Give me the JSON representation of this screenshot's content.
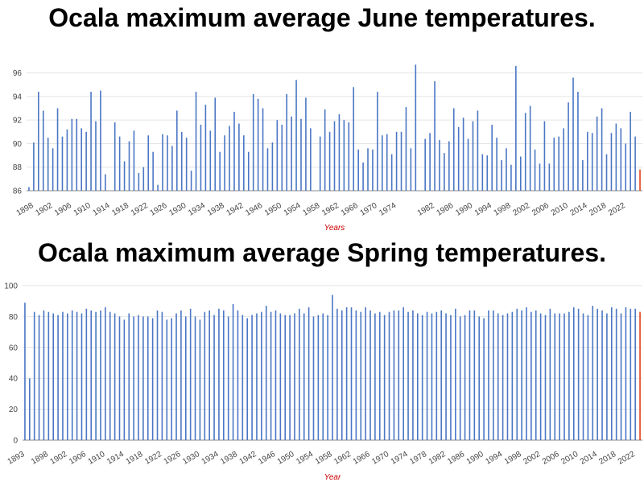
{
  "charts": [
    {
      "title": "Ocala maximum average June temperatures.",
      "chart_data": {
        "type": "bar",
        "xlabel": "Years",
        "ylabel": "",
        "ylim": [
          86,
          97
        ],
        "yticks": [
          86,
          88,
          90,
          92,
          94,
          96
        ],
        "grid": true,
        "start_year": 1897,
        "x_tick_labels": [
          "1898",
          "1902",
          "1906",
          "1910",
          "1914",
          "1918",
          "1922",
          "1926",
          "1930",
          "1934",
          "1938",
          "1942",
          "1946",
          "1950",
          "1954",
          "1958",
          "1962",
          "1966",
          "1970",
          "1974",
          "1982",
          "1986",
          "1990",
          "1994",
          "1998",
          "2002",
          "2006",
          "2010",
          "2014",
          "2018",
          "2022"
        ],
        "bar_color": "#4a76c4",
        "highlight_color": "#e0401a",
        "values": [
          86.3,
          90.1,
          94.4,
          92.8,
          90.5,
          89.6,
          93.0,
          90.6,
          91.2,
          92.1,
          92.1,
          91.3,
          91.0,
          94.4,
          91.9,
          94.5,
          87.4,
          null,
          91.8,
          90.6,
          88.5,
          90.2,
          91.1,
          87.5,
          88.0,
          90.7,
          89.3,
          86.5,
          90.8,
          90.7,
          89.8,
          92.8,
          91.0,
          90.5,
          87.7,
          94.4,
          91.6,
          93.3,
          91.1,
          93.9,
          89.3,
          90.7,
          91.5,
          92.7,
          91.7,
          90.7,
          89.3,
          94.2,
          93.8,
          93.0,
          89.6,
          90.1,
          92.0,
          91.6,
          94.2,
          92.3,
          95.4,
          92.1,
          93.9,
          91.3,
          null,
          90.6,
          92.9,
          91.0,
          91.9,
          92.5,
          92.0,
          91.8,
          94.8,
          89.5,
          88.4,
          89.6,
          89.5,
          94.4,
          90.7,
          90.8,
          89.1,
          91.0,
          91.0,
          93.1,
          89.6,
          96.7,
          null,
          90.4,
          90.9,
          95.3,
          90.3,
          89.2,
          90.2,
          93.0,
          91.4,
          92.2,
          90.4,
          91.9,
          92.8,
          89.1,
          89.0,
          91.6,
          90.5,
          88.6,
          89.6,
          88.2,
          96.6,
          88.9,
          92.6,
          93.2,
          89.5,
          88.3,
          91.9,
          88.3,
          90.5,
          90.6,
          91.3,
          93.5,
          95.6,
          94.4,
          88.6,
          91.0,
          90.9,
          92.3,
          93.0,
          89.1,
          90.9,
          91.7,
          91.3,
          90.0,
          92.7,
          90.6,
          87.8
        ],
        "highlight_last": true
      }
    },
    {
      "title": "Ocala maximum average Spring temperatures.",
      "chart_data": {
        "type": "bar",
        "xlabel": "Year",
        "ylabel": "",
        "ylim": [
          0,
          100
        ],
        "yticks": [
          0,
          20,
          40,
          60,
          80,
          100
        ],
        "grid": true,
        "start_year": 1893,
        "x_tick_labels": [
          "1893",
          "1898",
          "1902",
          "1906",
          "1910",
          "1914",
          "1918",
          "1922",
          "1926",
          "1930",
          "1934",
          "1938",
          "1942",
          "1946",
          "1950",
          "1954",
          "1958",
          "1962",
          "1966",
          "1970",
          "1974",
          "1978",
          "1982",
          "1986",
          "1990",
          "1994",
          "1998",
          "2002",
          "2006",
          "2010",
          "2014",
          "2018",
          "2022"
        ],
        "bar_color": "#4a76c4",
        "highlight_color": "#e0401a",
        "values": [
          89,
          40,
          83,
          81,
          84,
          83,
          82,
          81,
          83,
          82,
          84,
          83,
          82,
          85,
          84,
          83,
          84,
          86,
          83,
          82,
          80,
          78,
          82,
          80,
          81,
          80,
          80,
          79,
          84,
          83,
          78,
          79,
          82,
          84,
          80,
          85,
          80,
          78,
          83,
          84,
          81,
          85,
          84,
          80,
          88,
          84,
          81,
          79,
          81,
          82,
          83,
          87,
          83,
          84,
          82,
          81,
          81,
          82,
          85,
          82,
          86,
          80,
          81,
          82,
          81,
          94,
          85,
          84,
          86,
          86,
          84,
          83,
          86,
          84,
          82,
          83,
          81,
          83,
          84,
          84,
          86,
          83,
          84,
          82,
          81,
          83,
          82,
          83,
          84,
          82,
          81,
          85,
          80,
          81,
          84,
          84,
          80,
          79,
          84,
          84,
          82,
          81,
          82,
          83,
          85,
          84,
          86,
          83,
          84,
          82,
          81,
          85,
          82,
          82,
          82,
          83,
          86,
          85,
          82,
          81,
          87,
          85,
          84,
          82,
          86,
          85,
          82,
          86,
          85,
          85,
          83
        ],
        "highlight_last": true
      }
    }
  ]
}
